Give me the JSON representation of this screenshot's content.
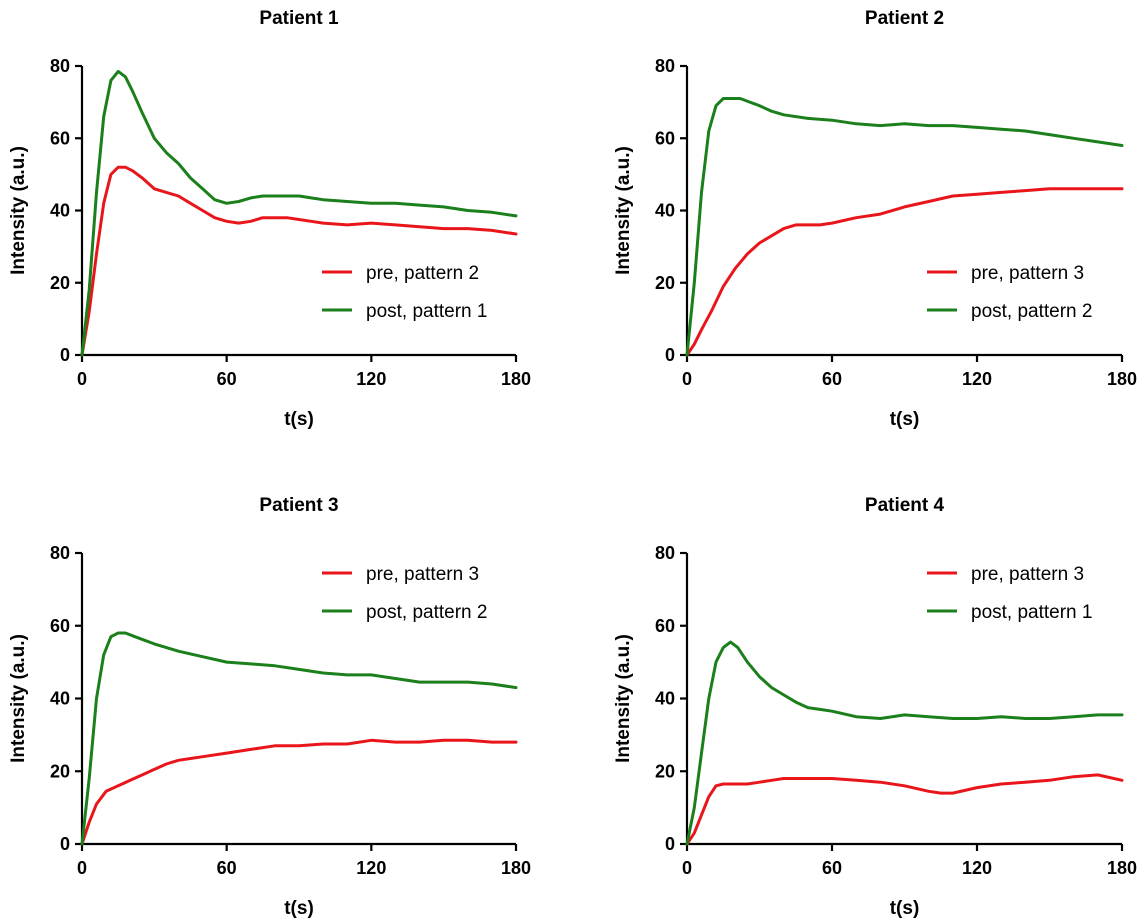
{
  "colors": {
    "pre": "#e8161b",
    "post": "#1b7f1b",
    "axis": "#000000",
    "background": "#ffffff"
  },
  "chart_data": [
    {
      "type": "line",
      "title": "Patient 1",
      "xlabel": "t(s)",
      "ylabel": "Intensity (a.u.)",
      "xlim": [
        0,
        180
      ],
      "ylim": [
        0,
        80
      ],
      "xticks": [
        0,
        60,
        120,
        180
      ],
      "yticks": [
        0,
        20,
        40,
        60,
        80
      ],
      "grid": false,
      "legend": "right",
      "series": [
        {
          "name": "pre, pattern 2",
          "color": "#e8161b",
          "x": [
            0,
            3,
            6,
            9,
            12,
            15,
            18,
            21,
            25,
            30,
            35,
            40,
            45,
            50,
            55,
            60,
            65,
            70,
            75,
            80,
            85,
            90,
            95,
            100,
            110,
            120,
            130,
            140,
            150,
            160,
            170,
            180
          ],
          "y": [
            0,
            12,
            28,
            42,
            50,
            52,
            52,
            51,
            49,
            46,
            45,
            44,
            42,
            40,
            38,
            37,
            36.5,
            37,
            38,
            38,
            38,
            37.5,
            37,
            36.5,
            36,
            36.5,
            36,
            35.5,
            35,
            35,
            34.5,
            33.5
          ]
        },
        {
          "name": "post, pattern 1",
          "color": "#1b7f1b",
          "x": [
            0,
            3,
            6,
            9,
            12,
            15,
            18,
            21,
            25,
            30,
            35,
            40,
            45,
            50,
            55,
            60,
            65,
            70,
            75,
            80,
            85,
            90,
            95,
            100,
            110,
            120,
            130,
            140,
            150,
            160,
            170,
            180
          ],
          "y": [
            0,
            18,
            45,
            66,
            76,
            78.5,
            77,
            73,
            67,
            60,
            56,
            53,
            49,
            46,
            43,
            42,
            42.5,
            43.5,
            44,
            44,
            44,
            44,
            43.5,
            43,
            42.5,
            42,
            42,
            41.5,
            41,
            40,
            39.5,
            38.5
          ]
        }
      ]
    },
    {
      "type": "line",
      "title": "Patient 2",
      "xlabel": "t(s)",
      "ylabel": "Intensity (a.u.)",
      "xlim": [
        0,
        180
      ],
      "ylim": [
        0,
        80
      ],
      "xticks": [
        0,
        60,
        120,
        180
      ],
      "yticks": [
        0,
        20,
        40,
        60,
        80
      ],
      "grid": false,
      "legend": "right",
      "series": [
        {
          "name": "pre, pattern 3",
          "color": "#e8161b",
          "x": [
            0,
            3,
            6,
            10,
            15,
            20,
            25,
            30,
            35,
            40,
            45,
            50,
            55,
            60,
            70,
            80,
            90,
            100,
            110,
            120,
            130,
            140,
            150,
            160,
            170,
            180
          ],
          "y": [
            0,
            3,
            7,
            12,
            19,
            24,
            28,
            31,
            33,
            35,
            36,
            36,
            36,
            36.5,
            38,
            39,
            41,
            42.5,
            44,
            44.5,
            45,
            45.5,
            46,
            46,
            46,
            46
          ]
        },
        {
          "name": "post, pattern 2",
          "color": "#1b7f1b",
          "x": [
            0,
            3,
            6,
            9,
            12,
            15,
            18,
            22,
            26,
            30,
            35,
            40,
            50,
            60,
            70,
            80,
            90,
            100,
            110,
            120,
            130,
            140,
            150,
            160,
            170,
            180
          ],
          "y": [
            0,
            20,
            45,
            62,
            69,
            71,
            71,
            71,
            70,
            69,
            67.5,
            66.5,
            65.5,
            65,
            64,
            63.5,
            64,
            63.5,
            63.5,
            63,
            62.5,
            62,
            61,
            60,
            59,
            58
          ]
        }
      ]
    },
    {
      "type": "line",
      "title": "Patient 3",
      "xlabel": "t(s)",
      "ylabel": "Intensity (a.u.)",
      "xlim": [
        0,
        180
      ],
      "ylim": [
        0,
        80
      ],
      "xticks": [
        0,
        60,
        120,
        180
      ],
      "yticks": [
        0,
        20,
        40,
        60,
        80
      ],
      "grid": false,
      "legend": "top-right",
      "series": [
        {
          "name": "pre, pattern 3",
          "color": "#e8161b",
          "x": [
            0,
            3,
            6,
            10,
            15,
            20,
            25,
            30,
            35,
            40,
            45,
            50,
            60,
            70,
            80,
            90,
            100,
            110,
            120,
            130,
            140,
            150,
            160,
            170,
            180
          ],
          "y": [
            0,
            6,
            11,
            14.5,
            16,
            17.5,
            19,
            20.5,
            22,
            23,
            23.5,
            24,
            25,
            26,
            27,
            27,
            27.5,
            27.5,
            28.5,
            28,
            28,
            28.5,
            28.5,
            28,
            28
          ]
        },
        {
          "name": "post, pattern 2",
          "color": "#1b7f1b",
          "x": [
            0,
            3,
            6,
            9,
            12,
            15,
            18,
            22,
            26,
            30,
            35,
            40,
            50,
            60,
            70,
            80,
            90,
            100,
            110,
            120,
            130,
            140,
            150,
            160,
            170,
            180
          ],
          "y": [
            0,
            18,
            40,
            52,
            57,
            58,
            58,
            57,
            56,
            55,
            54,
            53,
            51.5,
            50,
            49.5,
            49,
            48,
            47,
            46.5,
            46.5,
            45.5,
            44.5,
            44.5,
            44.5,
            44,
            43
          ]
        }
      ]
    },
    {
      "type": "line",
      "title": "Patient 4",
      "xlabel": "t(s)",
      "ylabel": "Intensity (a.u.)",
      "xlim": [
        0,
        180
      ],
      "ylim": [
        0,
        80
      ],
      "xticks": [
        0,
        60,
        120,
        180
      ],
      "yticks": [
        0,
        20,
        40,
        60,
        80
      ],
      "grid": false,
      "legend": "top-right",
      "series": [
        {
          "name": "pre, pattern 3",
          "color": "#e8161b",
          "x": [
            0,
            3,
            6,
            9,
            12,
            15,
            20,
            25,
            30,
            35,
            40,
            50,
            60,
            70,
            80,
            90,
            100,
            105,
            110,
            120,
            130,
            140,
            150,
            160,
            170,
            180
          ],
          "y": [
            0,
            3,
            8,
            13,
            16,
            16.5,
            16.5,
            16.5,
            17,
            17.5,
            18,
            18,
            18,
            17.5,
            17,
            16,
            14.5,
            14,
            14,
            15.5,
            16.5,
            17,
            17.5,
            18.5,
            19,
            17.5
          ]
        },
        {
          "name": "post, pattern 1",
          "color": "#1b7f1b",
          "x": [
            0,
            3,
            6,
            9,
            12,
            15,
            18,
            21,
            25,
            30,
            35,
            40,
            45,
            50,
            55,
            60,
            70,
            80,
            90,
            100,
            110,
            120,
            130,
            140,
            150,
            160,
            170,
            180
          ],
          "y": [
            0,
            10,
            25,
            40,
            50,
            54,
            55.5,
            54,
            50,
            46,
            43,
            41,
            39,
            37.5,
            37,
            36.5,
            35,
            34.5,
            35.5,
            35,
            34.5,
            34.5,
            35,
            34.5,
            34.5,
            35,
            35.5,
            35.5
          ]
        }
      ]
    }
  ]
}
